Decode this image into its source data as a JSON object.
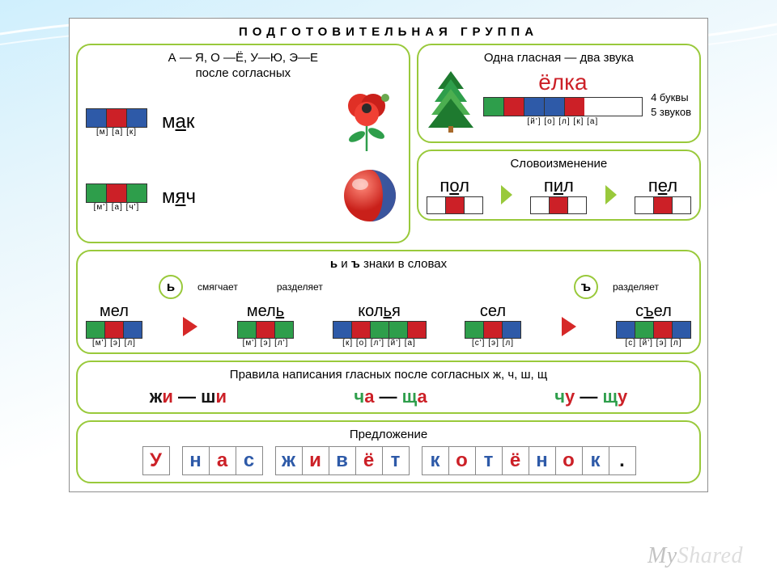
{
  "colors": {
    "blue": "#2e5aa8",
    "red": "#cc2027",
    "green": "#2e9e4b",
    "white": "#ffffff",
    "dark": "#141414",
    "border_green": "#99c93b",
    "tree_dark": "#1e7a2f",
    "tree_light": "#4caf50",
    "stem": "#a86a2b"
  },
  "title": "ПОДГОТОВИТЕЛЬНАЯ ГРУППА",
  "panel1": {
    "heading": "А — Я, О —Ё, У—Ю, Э—Е\nпосле согласных",
    "items": [
      {
        "word_pre": "м",
        "word_u": "а",
        "word_post": "к",
        "boxes": [
          "blue",
          "red",
          "blue"
        ],
        "phon": "[м]  [а]  [к]",
        "img": "poppy"
      },
      {
        "word_pre": "м",
        "word_u": "я",
        "word_post": "ч",
        "boxes": [
          "green",
          "red",
          "green"
        ],
        "phon": "[м']  [а]  [ч']",
        "img": "ball"
      }
    ]
  },
  "panel2": {
    "heading": "Одна гласная — два звука",
    "word": "ёлка",
    "boxes": [
      "green",
      "red",
      "blue",
      "blue",
      "red"
    ],
    "phon": "[й'] [о] [л] [к] [а]",
    "side": [
      "4 буквы",
      "5 звуков"
    ]
  },
  "panel3": {
    "heading": "Словоизменение",
    "items": [
      {
        "pre": "п",
        "u": "о",
        "post": "л",
        "boxes": [
          "white",
          "red",
          "white"
        ]
      },
      {
        "pre": "п",
        "u": "и",
        "post": "л",
        "boxes": [
          "white",
          "red",
          "white"
        ]
      },
      {
        "pre": "п",
        "u": "е",
        "post": "л",
        "boxes": [
          "white",
          "red",
          "white"
        ]
      }
    ]
  },
  "panel4": {
    "heading": "ь и ъ знаки в словах",
    "soft": {
      "sign": "ь",
      "labels": [
        "смягчает",
        "разделяет"
      ]
    },
    "hard": {
      "sign": "ъ",
      "labels": [
        "разделяет"
      ]
    },
    "items": [
      {
        "word": "мел",
        "u_idx": -1,
        "boxes": [
          "green",
          "red",
          "blue"
        ],
        "phon": "[м'] [э] [л]"
      },
      {
        "word": "мель",
        "u_idx": 3,
        "boxes": [
          "green",
          "red",
          "green"
        ],
        "phon": "[м'] [э] [л']"
      },
      {
        "word": "колья",
        "u_idx": 3,
        "boxes": [
          "blue",
          "red",
          "green",
          "green",
          "red"
        ],
        "phon": "[к] [о] [л'] [й'] [а]"
      },
      {
        "word": "сел",
        "u_idx": -1,
        "boxes": [
          "green",
          "red",
          "blue"
        ],
        "phon": "[с'] [э] [л]"
      },
      {
        "word": "съел",
        "u_idx": 1,
        "boxes": [
          "blue",
          "green",
          "red",
          "blue"
        ],
        "phon": "[с] [й'] [э] [л]"
      }
    ]
  },
  "panel5": {
    "heading": "Правила написания гласных после согласных ж, ч, ш, щ",
    "rules": [
      [
        {
          "t": "ж",
          "c": "dark"
        },
        {
          "t": "и",
          "c": "red"
        },
        {
          "t": " — ",
          "c": "dark"
        },
        {
          "t": "ш",
          "c": "dark"
        },
        {
          "t": "и",
          "c": "red"
        }
      ],
      [
        {
          "t": "ч",
          "c": "green"
        },
        {
          "t": "а",
          "c": "red"
        },
        {
          "t": " — ",
          "c": "dark"
        },
        {
          "t": "щ",
          "c": "green"
        },
        {
          "t": "а",
          "c": "red"
        }
      ],
      [
        {
          "t": "ч",
          "c": "green"
        },
        {
          "t": "у",
          "c": "red"
        },
        {
          "t": " — ",
          "c": "dark"
        },
        {
          "t": "щ",
          "c": "green"
        },
        {
          "t": "у",
          "c": "red"
        }
      ]
    ]
  },
  "panel6": {
    "heading": "Предложение",
    "cells": [
      {
        "t": "У",
        "c": "red"
      },
      null,
      {
        "t": "н",
        "c": "blue"
      },
      {
        "t": "а",
        "c": "red"
      },
      {
        "t": "с",
        "c": "blue"
      },
      null,
      {
        "t": "ж",
        "c": "blue"
      },
      {
        "t": "и",
        "c": "red"
      },
      {
        "t": "в",
        "c": "blue"
      },
      {
        "t": "ё",
        "c": "red"
      },
      {
        "t": "т",
        "c": "blue"
      },
      null,
      {
        "t": "к",
        "c": "blue"
      },
      {
        "t": "о",
        "c": "red"
      },
      {
        "t": "т",
        "c": "blue"
      },
      {
        "t": "ё",
        "c": "red"
      },
      {
        "t": "н",
        "c": "blue"
      },
      {
        "t": "о",
        "c": "red"
      },
      {
        "t": "к",
        "c": "blue"
      },
      {
        "t": ".",
        "c": "dark"
      }
    ]
  },
  "watermark": {
    "a": "My",
    "b": "Shared"
  }
}
